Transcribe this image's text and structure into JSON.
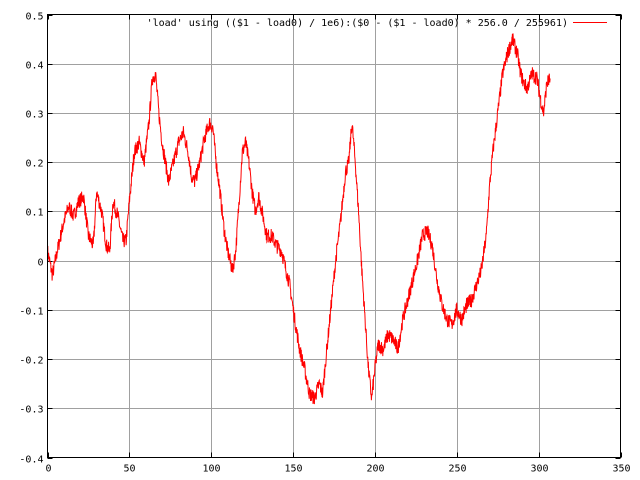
{
  "chart_data": {
    "type": "line",
    "title": "",
    "xlabel": "",
    "ylabel": "",
    "xlim": [
      0,
      350
    ],
    "ylim": [
      -0.4,
      0.5
    ],
    "grid": true,
    "legend_placement": "top-right",
    "x_ticks": [
      "0",
      "50",
      "100",
      "150",
      "200",
      "250",
      "300",
      "350"
    ],
    "y_ticks": [
      "-0.4",
      "-0.3",
      "-0.2",
      "-0.1",
      "0",
      "0.1",
      "0.2",
      "0.3",
      "0.4",
      "0.5"
    ],
    "series": [
      {
        "name": "'load' using (($1 - load0) / 1e6):($0 - ($1 - load0) * 256.0 / 255961)",
        "color": "#ff0000",
        "points": [
          [
            0,
            0.02
          ],
          [
            3,
            -0.03
          ],
          [
            6,
            0.02
          ],
          [
            10,
            0.08
          ],
          [
            13,
            0.11
          ],
          [
            16,
            0.09
          ],
          [
            19,
            0.12
          ],
          [
            22,
            0.13
          ],
          [
            25,
            0.05
          ],
          [
            28,
            0.03
          ],
          [
            30,
            0.14
          ],
          [
            33,
            0.1
          ],
          [
            36,
            0.03
          ],
          [
            38,
            0.02
          ],
          [
            40,
            0.12
          ],
          [
            43,
            0.09
          ],
          [
            46,
            0.04
          ],
          [
            48,
            0.04
          ],
          [
            50,
            0.12
          ],
          [
            53,
            0.22
          ],
          [
            56,
            0.24
          ],
          [
            59,
            0.2
          ],
          [
            62,
            0.28
          ],
          [
            64,
            0.37
          ],
          [
            66,
            0.38
          ],
          [
            68,
            0.3
          ],
          [
            70,
            0.24
          ],
          [
            72,
            0.2
          ],
          [
            74,
            0.16
          ],
          [
            77,
            0.2
          ],
          [
            80,
            0.24
          ],
          [
            83,
            0.26
          ],
          [
            86,
            0.22
          ],
          [
            88,
            0.17
          ],
          [
            90,
            0.16
          ],
          [
            93,
            0.2
          ],
          [
            96,
            0.25
          ],
          [
            99,
            0.28
          ],
          [
            101,
            0.27
          ],
          [
            103,
            0.2
          ],
          [
            105,
            0.15
          ],
          [
            108,
            0.06
          ],
          [
            110,
            0.02
          ],
          [
            113,
            -0.02
          ],
          [
            115,
            0.02
          ],
          [
            117,
            0.12
          ],
          [
            119,
            0.22
          ],
          [
            121,
            0.24
          ],
          [
            123,
            0.2
          ],
          [
            125,
            0.14
          ],
          [
            127,
            0.1
          ],
          [
            129,
            0.13
          ],
          [
            131,
            0.1
          ],
          [
            134,
            0.05
          ],
          [
            137,
            0.05
          ],
          [
            140,
            0.03
          ],
          [
            143,
            0.02
          ],
          [
            145,
            -0.01
          ],
          [
            148,
            -0.05
          ],
          [
            151,
            -0.12
          ],
          [
            154,
            -0.18
          ],
          [
            157,
            -0.22
          ],
          [
            160,
            -0.27
          ],
          [
            163,
            -0.28
          ],
          [
            166,
            -0.25
          ],
          [
            168,
            -0.27
          ],
          [
            170,
            -0.2
          ],
          [
            173,
            -0.1
          ],
          [
            176,
            0.0
          ],
          [
            179,
            0.08
          ],
          [
            182,
            0.18
          ],
          [
            184,
            0.2
          ],
          [
            186,
            0.28
          ],
          [
            188,
            0.2
          ],
          [
            190,
            0.1
          ],
          [
            192,
            -0.02
          ],
          [
            194,
            -0.12
          ],
          [
            196,
            -0.22
          ],
          [
            198,
            -0.28
          ],
          [
            200,
            -0.22
          ],
          [
            202,
            -0.17
          ],
          [
            205,
            -0.18
          ],
          [
            208,
            -0.15
          ],
          [
            211,
            -0.16
          ],
          [
            214,
            -0.18
          ],
          [
            217,
            -0.12
          ],
          [
            220,
            -0.08
          ],
          [
            223,
            -0.04
          ],
          [
            226,
            0.0
          ],
          [
            229,
            0.05
          ],
          [
            232,
            0.06
          ],
          [
            235,
            0.03
          ],
          [
            238,
            -0.04
          ],
          [
            241,
            -0.09
          ],
          [
            244,
            -0.12
          ],
          [
            247,
            -0.13
          ],
          [
            250,
            -0.1
          ],
          [
            253,
            -0.12
          ],
          [
            256,
            -0.09
          ],
          [
            259,
            -0.08
          ],
          [
            262,
            -0.05
          ],
          [
            265,
            -0.02
          ],
          [
            268,
            0.05
          ],
          [
            270,
            0.15
          ],
          [
            272,
            0.22
          ],
          [
            275,
            0.3
          ],
          [
            278,
            0.38
          ],
          [
            281,
            0.42
          ],
          [
            284,
            0.45
          ],
          [
            287,
            0.42
          ],
          [
            289,
            0.38
          ],
          [
            291,
            0.36
          ],
          [
            293,
            0.35
          ],
          [
            296,
            0.38
          ],
          [
            299,
            0.37
          ],
          [
            301,
            0.33
          ],
          [
            303,
            0.3
          ],
          [
            305,
            0.36
          ],
          [
            307,
            0.37
          ]
        ]
      }
    ]
  }
}
